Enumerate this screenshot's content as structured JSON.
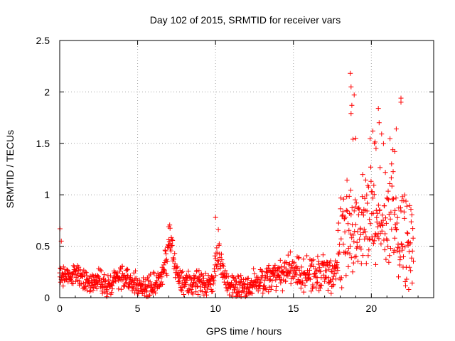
{
  "chart_data": {
    "type": "scatter",
    "title": "Day 102 of 2015, SRMTID for receiver vars",
    "xlabel": "GPS time / hours",
    "ylabel": "SRMTID / TECUs",
    "xlim": [
      0,
      24
    ],
    "ylim": [
      0,
      2.5
    ],
    "xticks": [
      0,
      5,
      10,
      15,
      20
    ],
    "xtick_labels": [
      "0",
      "5",
      "10",
      "15",
      "20"
    ],
    "yticks": [
      0,
      0.5,
      1,
      1.5,
      2,
      2.5
    ],
    "ytick_labels": [
      "0",
      "0.5",
      "1",
      "1.5",
      "2",
      "2.5"
    ],
    "grid": true,
    "marker": "+",
    "color": "#ff0000",
    "profile": [
      [
        0.0,
        0.22
      ],
      [
        0.5,
        0.2
      ],
      [
        1.0,
        0.27
      ],
      [
        1.5,
        0.17
      ],
      [
        2.0,
        0.15
      ],
      [
        2.5,
        0.19
      ],
      [
        3.0,
        0.1
      ],
      [
        3.5,
        0.17
      ],
      [
        4.0,
        0.2
      ],
      [
        4.5,
        0.16
      ],
      [
        5.0,
        0.13
      ],
      [
        5.5,
        0.1
      ],
      [
        6.0,
        0.13
      ],
      [
        6.5,
        0.17
      ],
      [
        6.9,
        0.4
      ],
      [
        7.1,
        0.55
      ],
      [
        7.4,
        0.3
      ],
      [
        7.8,
        0.15
      ],
      [
        8.5,
        0.13
      ],
      [
        9.0,
        0.15
      ],
      [
        9.5,
        0.13
      ],
      [
        9.9,
        0.18
      ],
      [
        10.1,
        0.45
      ],
      [
        10.4,
        0.3
      ],
      [
        10.8,
        0.13
      ],
      [
        11.5,
        0.13
      ],
      [
        12.0,
        0.11
      ],
      [
        12.5,
        0.15
      ],
      [
        13.0,
        0.16
      ],
      [
        13.5,
        0.19
      ],
      [
        14.0,
        0.22
      ],
      [
        14.5,
        0.25
      ],
      [
        15.0,
        0.27
      ],
      [
        15.5,
        0.2
      ],
      [
        16.0,
        0.25
      ],
      [
        16.5,
        0.22
      ],
      [
        17.0,
        0.28
      ],
      [
        17.5,
        0.15
      ],
      [
        18.0,
        0.5
      ],
      [
        18.5,
        0.7
      ],
      [
        19.0,
        0.8
      ],
      [
        19.5,
        0.75
      ],
      [
        20.0,
        0.8
      ],
      [
        20.5,
        0.85
      ],
      [
        21.0,
        0.7
      ],
      [
        21.5,
        0.75
      ],
      [
        22.0,
        0.55
      ],
      [
        22.5,
        0.45
      ],
      [
        22.7,
        0.35
      ]
    ],
    "noise": [
      [
        0,
        0.09
      ],
      [
        6.5,
        0.09
      ],
      [
        7.0,
        0.18
      ],
      [
        7.5,
        0.09
      ],
      [
        9.9,
        0.1
      ],
      [
        10.2,
        0.2
      ],
      [
        10.6,
        0.09
      ],
      [
        15.0,
        0.14
      ],
      [
        17.8,
        0.14
      ],
      [
        18.0,
        0.4
      ],
      [
        22.7,
        0.4
      ]
    ],
    "sample_interval_hours": 0.02,
    "outliers": [
      {
        "x": 0.02,
        "y": 0.67
      },
      {
        "x": 0.1,
        "y": 0.55
      },
      {
        "x": 7.0,
        "y": 0.69
      },
      {
        "x": 10.0,
        "y": 0.78
      },
      {
        "x": 18.65,
        "y": 2.18
      },
      {
        "x": 18.7,
        "y": 2.05
      },
      {
        "x": 18.75,
        "y": 1.87
      },
      {
        "x": 18.7,
        "y": 1.79
      },
      {
        "x": 19.0,
        "y": 1.55
      },
      {
        "x": 18.9,
        "y": 1.97
      },
      {
        "x": 20.1,
        "y": 1.62
      },
      {
        "x": 20.2,
        "y": 1.5
      },
      {
        "x": 20.45,
        "y": 1.84
      },
      {
        "x": 20.5,
        "y": 1.7
      },
      {
        "x": 21.5,
        "y": 1.42
      },
      {
        "x": 21.6,
        "y": 1.64
      },
      {
        "x": 21.9,
        "y": 1.94
      },
      {
        "x": 21.9,
        "y": 1.9
      },
      {
        "x": 21.3,
        "y": 1.3
      },
      {
        "x": 20.3,
        "y": 1.45
      }
    ]
  }
}
